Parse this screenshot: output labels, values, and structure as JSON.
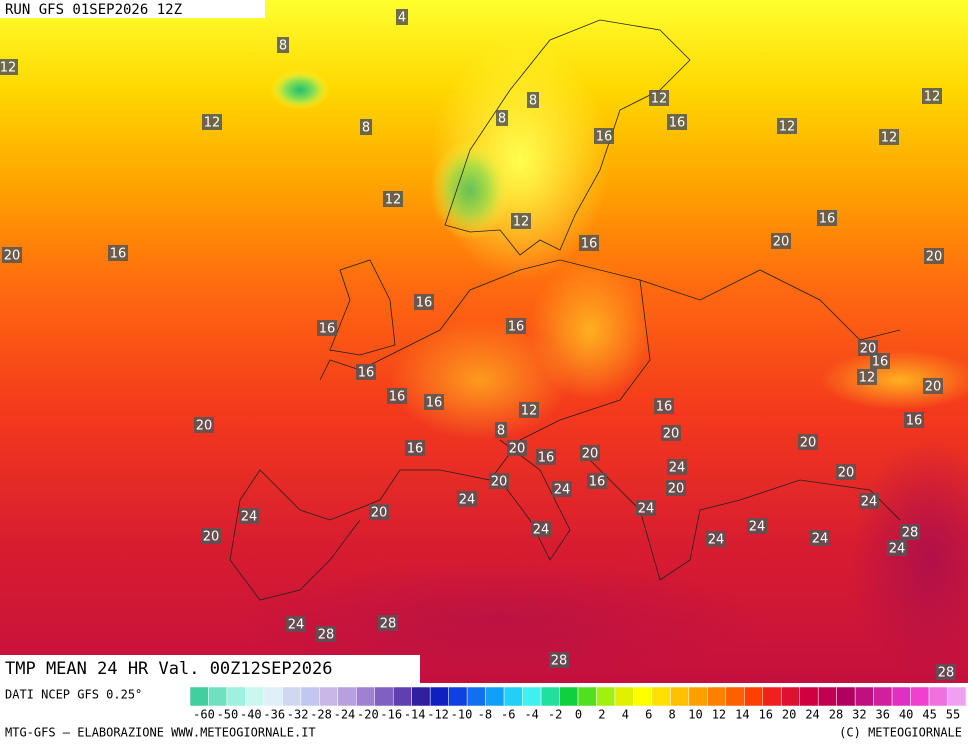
{
  "header": {
    "run": "RUN GFS 01SEP2026 12Z"
  },
  "map": {
    "labels": [
      "4",
      "8",
      "12",
      "12",
      "8",
      "8",
      "8",
      "12",
      "16",
      "12",
      "12",
      "12",
      "16",
      "12",
      "12",
      "16",
      "16",
      "20",
      "20",
      "20",
      "16",
      "16",
      "16",
      "16",
      "20",
      "16",
      "12",
      "20",
      "16",
      "16",
      "16",
      "12",
      "16",
      "16",
      "20",
      "8",
      "20",
      "20",
      "16",
      "20",
      "16",
      "20",
      "24",
      "20",
      "20",
      "16",
      "24",
      "20",
      "24",
      "24",
      "24",
      "20",
      "24",
      "24",
      "24",
      "28",
      "20",
      "24",
      "24",
      "24",
      "24",
      "28",
      "28",
      "28",
      "28"
    ]
  },
  "footer": {
    "title": "TMP MEAN 24 HR Val. 00Z12SEP2026",
    "source": "DATI NCEP GFS 0.25°",
    "credit": "MTG-GFS — ELABORAZIONE WWW.METEOGIORNALE.IT",
    "copyright": "(C) METEOGIORNALE",
    "scale": [
      "-60",
      "-50",
      "-40",
      "-36",
      "-32",
      "-28",
      "-24",
      "-20",
      "-16",
      "-14",
      "-12",
      "-10",
      "-8",
      "-6",
      "-4",
      "-2",
      "0",
      "2",
      "4",
      "6",
      "8",
      "10",
      "12",
      "14",
      "16",
      "20",
      "24",
      "28",
      "32",
      "36",
      "40",
      "45",
      "55"
    ]
  }
}
